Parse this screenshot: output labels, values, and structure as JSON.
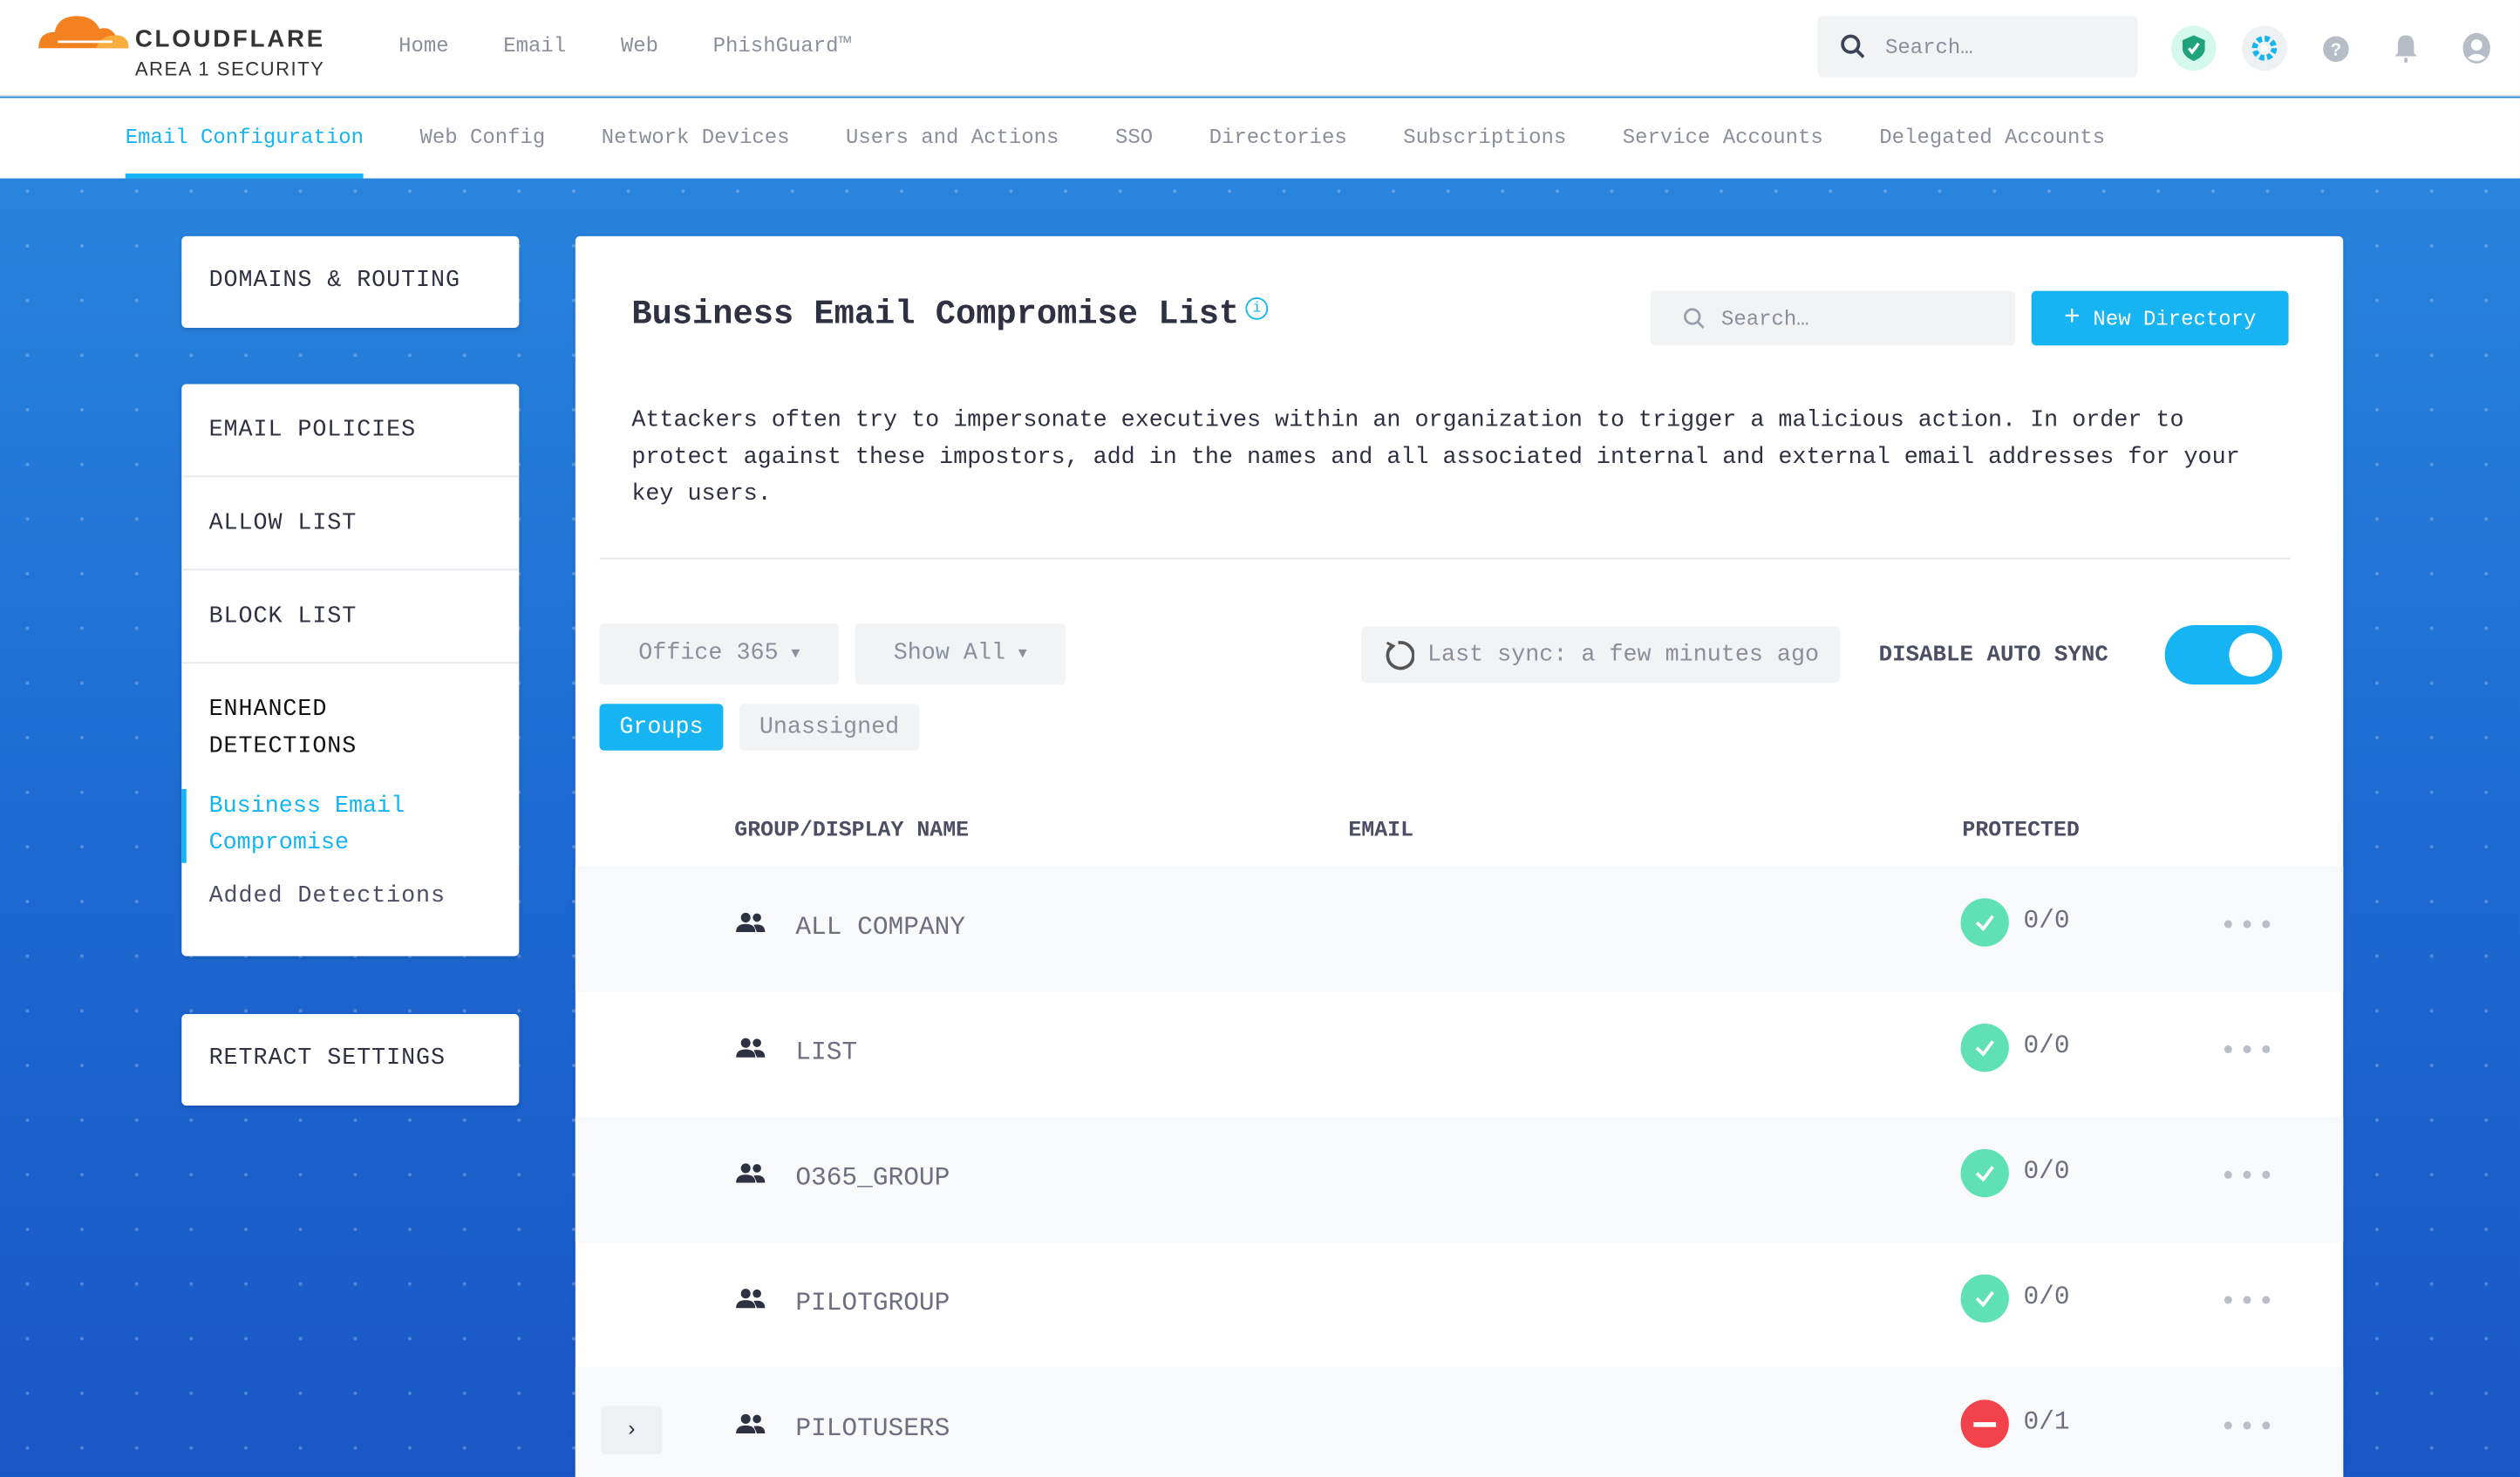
{
  "brand": {
    "name": "CLOUDFLARE",
    "sub": "AREA 1 SECURITY"
  },
  "topnav": [
    "Home",
    "Email",
    "Web",
    "PhishGuard™"
  ],
  "search": {
    "placeholder": "Search…"
  },
  "subnav": [
    "Email Configuration",
    "Web Config",
    "Network Devices",
    "Users and Actions",
    "SSO",
    "Directories",
    "Subscriptions",
    "Service Accounts",
    "Delegated Accounts"
  ],
  "sidebar": {
    "domains": "DOMAINS & ROUTING",
    "policies": "EMAIL POLICIES",
    "allow": "ALLOW LIST",
    "block": "BLOCK LIST",
    "enhanced": "ENHANCED DETECTIONS",
    "bec": "Business Email Compromise",
    "added": "Added Detections",
    "retract": "RETRACT SETTINGS"
  },
  "main": {
    "title": "Business Email Compromise List",
    "search_placeholder": "Search…",
    "new_button": "New Directory",
    "description": "Attackers often try to impersonate executives within an organization to trigger a malicious action. In order to protect against these impostors, add in the names and all associated internal and external email addresses for your key users.",
    "source": "Office 365",
    "filter": "Show All",
    "last_sync": "Last sync: a few minutes ago",
    "auto_sync_label": "DISABLE AUTO SYNC",
    "auto_sync_on": true,
    "tabs": [
      "Groups",
      "Unassigned"
    ],
    "columns": [
      "GROUP/DISPLAY NAME",
      "EMAIL",
      "PROTECTED"
    ],
    "rows": [
      {
        "name": "ALL COMPANY",
        "protected": "0/0",
        "status": "ok"
      },
      {
        "name": "LIST",
        "protected": "0/0",
        "status": "ok"
      },
      {
        "name": "O365_GROUP",
        "protected": "0/0",
        "status": "ok"
      },
      {
        "name": "PILOTGROUP",
        "protected": "0/0",
        "status": "ok"
      },
      {
        "name": "PILOTUSERS",
        "protected": "0/1",
        "status": "blocked"
      }
    ]
  },
  "colors": {
    "accent": "#16b4f2",
    "ok": "#5fe0b5",
    "blocked": "#f2424a"
  }
}
